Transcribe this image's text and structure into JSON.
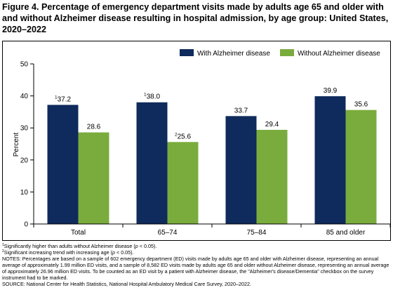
{
  "figure": {
    "title": "Figure 4. Percentage of emergency department visits made by adults age 65 and older with and without Alzheimer disease resulting in hospital admission, by age group: United States, 2020–2022"
  },
  "chart_data": {
    "type": "bar",
    "categories": [
      "Total",
      "65–74",
      "75–84",
      "85 and older"
    ],
    "series": [
      {
        "name": "With Alzheimer disease",
        "values": [
          37.2,
          38.0,
          33.7,
          39.9
        ],
        "color": "#0f2a5c",
        "markers": [
          "1",
          "1",
          "",
          ""
        ]
      },
      {
        "name": "Without Alzheimer disease",
        "values": [
          28.6,
          25.6,
          29.4,
          35.6
        ],
        "color": "#7aac3d",
        "markers": [
          "",
          "2",
          "",
          ""
        ]
      }
    ],
    "value_labels": [
      [
        "37.2",
        "38.0",
        "33.7",
        "39.9"
      ],
      [
        "28.6",
        "25.6",
        "29.4",
        "35.6"
      ]
    ],
    "ylabel": "Percent",
    "xlabel": "",
    "ylim": [
      0,
      50
    ],
    "yticks": [
      "0",
      "10",
      "20",
      "30",
      "40",
      "50"
    ],
    "grid": false,
    "legend_position": "top-right"
  },
  "footnotes": {
    "f1_marker": "1",
    "f1_text": "Significantly higher than adults without Alzheimer disease (",
    "f1_p": "p",
    "f1_end": " < 0.05).",
    "f2_marker": "2",
    "f2_text": "Significant increasing trend with increasing age (",
    "f2_p": "p",
    "f2_end": " < 0.05).",
    "notes": "NOTES: Percentages are based on a sample of 602 emergency department (ED) visits made by adults age 65 and older with Alzheimer disease, representing an annual average of approximately 1.99 million ED visits, and a sample of 8,582 ED visits made by adults age 65 and older without Alzheimer disease, representing an annual average of approximately 26.96 million ED visits. To be counted as an ED visit by a patient with Alzheimer disease, the \"Alzheimer's disease/Dementia\" checkbox on the survey instrument had to be marked.",
    "source": "SOURCE: National Center for Health Statistics, National Hospital Ambulatory Medical Care Survey, 2020–2022."
  }
}
